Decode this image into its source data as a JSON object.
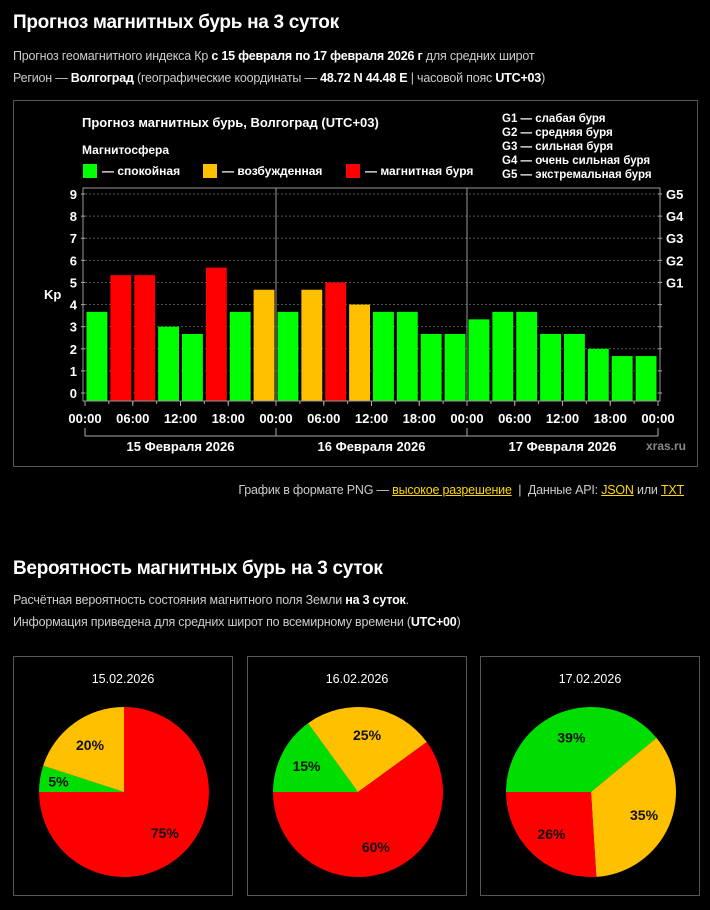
{
  "forecast": {
    "title": "Прогноз магнитных бурь на 3 суток",
    "line1": {
      "pre": "Прогноз геомагнитного индекса Кр",
      "bold": "с 15 февраля по 17 февраля 2026 г",
      "post": "для средних широт"
    },
    "line2": {
      "pre": "Регион —",
      "region": "Волгоград",
      "mid": "(географические координаты —",
      "coords": "48.72 N 44.48 E",
      "sep": "| часовой пояс",
      "tz": "UTC+03",
      "close": ")"
    }
  },
  "chart_data": {
    "type": "bar",
    "title": "Прогноз магнитных бурь, Волгоград (UTC+03)",
    "ylabel": "Kp",
    "ylim": [
      0,
      9
    ],
    "yticks": [
      "0",
      "1",
      "2",
      "3",
      "4",
      "5",
      "6",
      "7",
      "8",
      "9"
    ],
    "right_ticks": [
      {
        "kp": 5,
        "label": "G1"
      },
      {
        "kp": 6,
        "label": "G2"
      },
      {
        "kp": 7,
        "label": "G3"
      },
      {
        "kp": 8,
        "label": "G4"
      },
      {
        "kp": 9,
        "label": "G5"
      }
    ],
    "grid": true,
    "legend_title": "Магнитосфера",
    "legend": [
      {
        "label": "— спокойная",
        "color": "#00ff00"
      },
      {
        "label": "— возбужденная",
        "color": "#ffc000"
      },
      {
        "label": "— магнитная буря",
        "color": "#ff0000"
      }
    ],
    "g_scale": [
      "G1 — слабая буря",
      "G2 — средняя буря",
      "G3 — сильная буря",
      "G4 — очень сильная буря",
      "G5 — экстремальная буря"
    ],
    "time_labels": [
      "00:00",
      "06:00",
      "12:00",
      "18:00",
      "00:00",
      "06:00",
      "12:00",
      "18:00",
      "00:00",
      "06:00",
      "12:00",
      "18:00",
      "00:00"
    ],
    "day_labels": [
      "15 Февраля 2026",
      "16 Февраля 2026",
      "17 Февраля 2026"
    ],
    "watermark": "xras.ru",
    "values": [
      3.67,
      5.33,
      5.33,
      3.0,
      2.67,
      5.67,
      3.67,
      4.67,
      3.67,
      4.67,
      5.0,
      4.0,
      3.67,
      3.67,
      2.67,
      2.67,
      3.33,
      3.67,
      3.67,
      2.67,
      2.67,
      2.0,
      1.67,
      1.67
    ],
    "levels": [
      "quiet",
      "storm",
      "storm",
      "quiet",
      "quiet",
      "storm",
      "quiet",
      "active",
      "quiet",
      "active",
      "storm",
      "active",
      "quiet",
      "quiet",
      "quiet",
      "quiet",
      "quiet",
      "quiet",
      "quiet",
      "quiet",
      "quiet",
      "quiet",
      "quiet",
      "quiet"
    ],
    "colors": {
      "quiet": "#00ff00",
      "active": "#ffc000",
      "storm": "#ff0000"
    }
  },
  "links": {
    "png_text": "График в формате PNG —",
    "hires": "высокое разрешение",
    "sep": "|",
    "api_text": "Данные API:",
    "json": "JSON",
    "or": "или",
    "txt": "TXT"
  },
  "probability": {
    "title": "Вероятность магнитных бурь на 3 суток",
    "line1": {
      "pre": "Расчётная вероятность состояния магнитного поля Земли",
      "bold": "на 3 суток",
      "post": "."
    },
    "line2": {
      "pre": "Информация приведена для средних широт по всемирному времени (",
      "bold": "UTC+00",
      "post": ")"
    },
    "pies": [
      {
        "date": "15.02.2026",
        "slices": [
          {
            "level": "quiet",
            "value": 5,
            "label": "5%"
          },
          {
            "level": "active",
            "value": 20,
            "label": "20%"
          },
          {
            "level": "storm",
            "value": 75,
            "label": "75%"
          }
        ]
      },
      {
        "date": "16.02.2026",
        "slices": [
          {
            "level": "quiet",
            "value": 15,
            "label": "15%"
          },
          {
            "level": "active",
            "value": 25,
            "label": "25%"
          },
          {
            "level": "storm",
            "value": 60,
            "label": "60%"
          }
        ]
      },
      {
        "date": "17.02.2026",
        "slices": [
          {
            "level": "quiet",
            "value": 39,
            "label": "39%"
          },
          {
            "level": "active",
            "value": 35,
            "label": "35%"
          },
          {
            "level": "storm",
            "value": 26,
            "label": "26%"
          }
        ]
      }
    ],
    "colors": {
      "quiet": "#00dd00",
      "active": "#ffc000",
      "storm": "#ff0000"
    }
  }
}
